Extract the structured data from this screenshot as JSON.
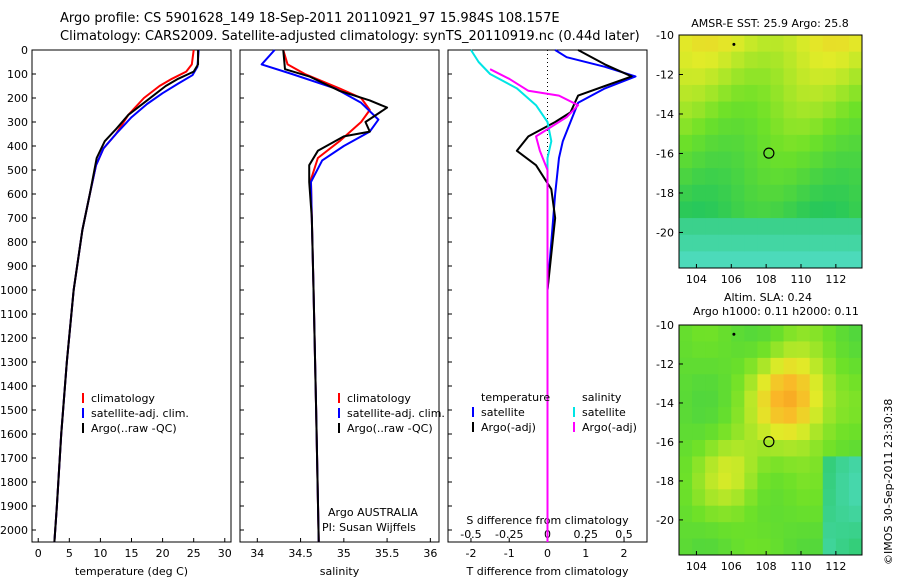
{
  "title_line1": "Argo profile: CS 5901628_149 18-Sep-2011 20110921_97 15.984S 108.157E",
  "title_line2": "Climatology: CARS2009. Satellite-adjusted climatology: synTS_20110919.nc (0.44d later)",
  "stamp": "©IMOS 30-Sep-2011 23:30:38",
  "colors": {
    "climatology": "#ff0000",
    "satellite": "#0000ff",
    "argo": "#000000",
    "sat_salinity": "#00e5e5",
    "argo_salinity_adj": "#ff00ff"
  },
  "chart_data": [
    {
      "type": "line",
      "panel": "temperature",
      "xlabel": "temperature (deg C)",
      "xlim": [
        -1,
        31
      ],
      "xticks": [
        0,
        5,
        10,
        15,
        20,
        25,
        30
      ],
      "ylim": [
        2050,
        0
      ],
      "yticks": [
        0,
        100,
        200,
        300,
        400,
        500,
        600,
        700,
        800,
        900,
        1000,
        1100,
        1200,
        1300,
        1400,
        1500,
        1600,
        1700,
        1800,
        1900,
        2000
      ],
      "legend": [
        "climatology",
        "satellite-adj. clim.",
        "Argo(..raw -QC)"
      ],
      "series": [
        {
          "name": "climatology",
          "color": "#ff0000",
          "points": [
            [
              25.0,
              0
            ],
            [
              24.7,
              60
            ],
            [
              23.8,
              90
            ],
            [
              21.5,
              120
            ],
            [
              19.5,
              150
            ],
            [
              17.0,
              200
            ],
            [
              14.5,
              270
            ],
            [
              12.5,
              350
            ],
            [
              10.5,
              410
            ],
            [
              9.3,
              480
            ],
            [
              8.3,
              600
            ],
            [
              7.1,
              750
            ],
            [
              5.7,
              1000
            ],
            [
              4.6,
              1300
            ],
            [
              3.7,
              1600
            ],
            [
              3.0,
              1900
            ],
            [
              2.6,
              2050
            ]
          ]
        },
        {
          "name": "satellite-adj. clim.",
          "color": "#0000ff",
          "points": [
            [
              25.8,
              0
            ],
            [
              25.6,
              70
            ],
            [
              24.8,
              105
            ],
            [
              22.5,
              140
            ],
            [
              20.0,
              180
            ],
            [
              17.5,
              225
            ],
            [
              15.0,
              280
            ],
            [
              12.5,
              350
            ],
            [
              10.5,
              410
            ],
            [
              9.3,
              480
            ],
            [
              8.3,
              600
            ],
            [
              7.1,
              750
            ],
            [
              5.7,
              1000
            ],
            [
              4.6,
              1300
            ],
            [
              3.7,
              1600
            ],
            [
              3.0,
              1900
            ],
            [
              2.6,
              2050
            ]
          ]
        },
        {
          "name": "Argo(..raw -QC)",
          "color": "#000000",
          "points": [
            [
              25.7,
              0
            ],
            [
              25.7,
              60
            ],
            [
              25.0,
              90
            ],
            [
              22.5,
              120
            ],
            [
              20.5,
              150
            ],
            [
              17.5,
              210
            ],
            [
              14.5,
              270
            ],
            [
              12.5,
              330
            ],
            [
              10.7,
              380
            ],
            [
              9.4,
              450
            ],
            [
              8.3,
              600
            ],
            [
              7.1,
              750
            ],
            [
              5.7,
              1000
            ],
            [
              4.6,
              1300
            ],
            [
              3.7,
              1600
            ],
            [
              3.0,
              1900
            ],
            [
              2.6,
              2050
            ]
          ]
        }
      ]
    },
    {
      "type": "line",
      "panel": "salinity",
      "xlabel": "salinity",
      "xlim": [
        33.8,
        36.1
      ],
      "xticks": [
        34,
        34.5,
        35,
        35.5,
        36
      ],
      "ylim": [
        2050,
        0
      ],
      "legend": [
        "climatology",
        "satellite-adj. clim.",
        "Argo(..raw -QC)"
      ],
      "annotation": [
        "Argo AUSTRALIA",
        "PI: Susan Wijffels"
      ],
      "series": [
        {
          "name": "climatology",
          "color": "#ff0000",
          "points": [
            [
              34.3,
              0
            ],
            [
              34.35,
              60
            ],
            [
              34.55,
              100
            ],
            [
              34.95,
              160
            ],
            [
              35.2,
              200
            ],
            [
              35.3,
              250
            ],
            [
              35.2,
              300
            ],
            [
              34.95,
              380
            ],
            [
              34.7,
              450
            ],
            [
              34.62,
              540
            ],
            [
              34.63,
              700
            ],
            [
              34.65,
              1000
            ],
            [
              34.68,
              1500
            ],
            [
              34.71,
              2050
            ]
          ]
        },
        {
          "name": "satellite-adj. clim.",
          "color": "#0000ff",
          "points": [
            [
              34.2,
              0
            ],
            [
              34.05,
              60
            ],
            [
              34.4,
              100
            ],
            [
              34.9,
              160
            ],
            [
              35.2,
              220
            ],
            [
              35.4,
              290
            ],
            [
              35.3,
              340
            ],
            [
              35.0,
              400
            ],
            [
              34.75,
              460
            ],
            [
              34.62,
              550
            ],
            [
              34.63,
              700
            ],
            [
              34.65,
              1000
            ],
            [
              34.68,
              1500
            ],
            [
              34.71,
              2050
            ]
          ]
        },
        {
          "name": "Argo(..raw -QC)",
          "color": "#000000",
          "points": [
            [
              34.3,
              0
            ],
            [
              34.32,
              80
            ],
            [
              34.6,
              110
            ],
            [
              34.95,
              170
            ],
            [
              35.3,
              210
            ],
            [
              35.5,
              240
            ],
            [
              35.25,
              300
            ],
            [
              35.3,
              340
            ],
            [
              35.0,
              360
            ],
            [
              34.7,
              420
            ],
            [
              34.6,
              480
            ],
            [
              34.6,
              550
            ],
            [
              34.63,
              700
            ],
            [
              34.65,
              1000
            ],
            [
              34.68,
              1500
            ],
            [
              34.71,
              2050
            ]
          ]
        }
      ]
    },
    {
      "type": "line",
      "panel": "differences",
      "xlabel_top": "S difference from climatology",
      "xlabel_bottom": "T difference from climatology",
      "xlim": [
        -2.6,
        2.6
      ],
      "xticks_T": [
        -2,
        -1,
        0,
        1,
        2
      ],
      "xticks_S": [
        "-0.5",
        "-0.25",
        "0",
        "0.25",
        "0.5"
      ],
      "ylim": [
        2050,
        0
      ],
      "legend": [
        {
          "heading": "temperature",
          "entries": [
            "satellite",
            "Argo(-adj)"
          ]
        },
        {
          "heading": "salinity",
          "entries": [
            "satellite",
            "Argo(-adj)"
          ]
        }
      ],
      "series": [
        {
          "name": "temperature satellite",
          "color": "#0000ff",
          "points": [
            [
              0.2,
              0
            ],
            [
              0.5,
              30
            ],
            [
              1.5,
              70
            ],
            [
              2.3,
              110
            ],
            [
              1.5,
              160
            ],
            [
              0.8,
              220
            ],
            [
              0.6,
              300
            ],
            [
              0.4,
              380
            ],
            [
              0.3,
              450
            ],
            [
              0.2,
              600
            ],
            [
              0.1,
              800
            ],
            [
              0.0,
              1000
            ],
            [
              0.0,
              2050
            ]
          ]
        },
        {
          "name": "temperature Argo(-adj)",
          "color": "#000000",
          "points": [
            [
              0.8,
              0
            ],
            [
              1.5,
              60
            ],
            [
              2.2,
              110
            ],
            [
              1.5,
              150
            ],
            [
              0.8,
              190
            ],
            [
              0.6,
              260
            ],
            [
              0.2,
              300
            ],
            [
              -0.5,
              360
            ],
            [
              -0.8,
              420
            ],
            [
              -0.3,
              480
            ],
            [
              0.1,
              580
            ],
            [
              0.2,
              700
            ],
            [
              0.1,
              850
            ],
            [
              0.0,
              1000
            ],
            [
              0.0,
              2050
            ]
          ]
        },
        {
          "name": "salinity satellite",
          "color": "#00e5e5",
          "points": [
            [
              -2.0,
              0
            ],
            [
              -1.8,
              50
            ],
            [
              -1.5,
              100
            ],
            [
              -0.8,
              160
            ],
            [
              -0.3,
              230
            ],
            [
              0.0,
              300
            ],
            [
              0.1,
              380
            ],
            [
              0.0,
              450
            ],
            [
              0.0,
              2050
            ]
          ]
        },
        {
          "name": "salinity Argo(-adj)",
          "color": "#ff00ff",
          "points": [
            [
              -1.5,
              80
            ],
            [
              -1.0,
              120
            ],
            [
              -0.5,
              170
            ],
            [
              0.3,
              190
            ],
            [
              0.8,
              230
            ],
            [
              0.5,
              280
            ],
            [
              -0.3,
              360
            ],
            [
              -0.2,
              420
            ],
            [
              0.0,
              500
            ],
            [
              0.0,
              2050
            ]
          ]
        }
      ]
    },
    {
      "type": "heatmap",
      "panel": "map_sst",
      "title": "AMSR-E SST: 25.9  Argo: 25.8",
      "xlim": [
        103,
        113.5
      ],
      "ylim": [
        -21.8,
        -10
      ],
      "xticks": [
        104,
        106,
        108,
        110,
        112
      ],
      "yticks": [
        -10,
        -12,
        -14,
        -16,
        -18,
        -20
      ],
      "marker": {
        "lon": 108.157,
        "lat": -15.984
      }
    },
    {
      "type": "heatmap",
      "panel": "map_sla",
      "title_lines": [
        "Altim. SLA: 0.24",
        "Argo h1000: 0.11 h2000: 0.11"
      ],
      "xlim": [
        103,
        113.5
      ],
      "ylim": [
        -21.8,
        -10
      ],
      "xticks": [
        104,
        106,
        108,
        110,
        112
      ],
      "yticks": [
        -10,
        -12,
        -14,
        -16,
        -18,
        -20
      ],
      "marker": {
        "lon": 108.157,
        "lat": -15.984
      }
    }
  ]
}
